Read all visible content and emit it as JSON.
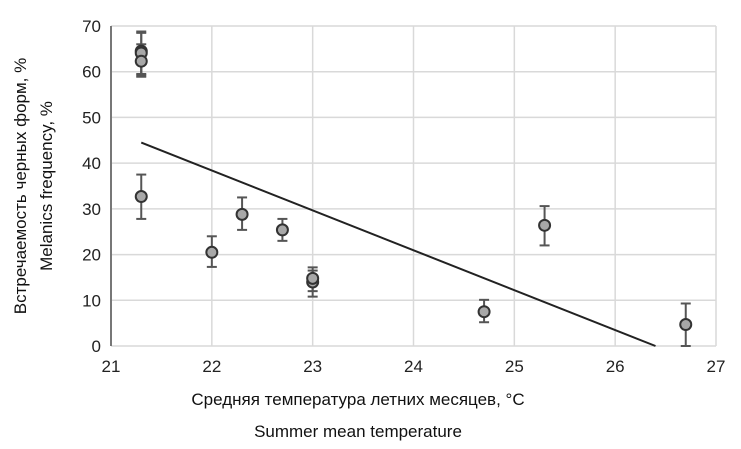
{
  "chart_data": {
    "type": "scatter",
    "title": "",
    "xlabel": [
      "Средняя температура летних месяцев, °C",
      "Summer mean temperature"
    ],
    "ylabel": [
      "Встречаемость черных форм, %",
      "Melanics frequency, %"
    ],
    "xlim": [
      21,
      27
    ],
    "ylim": [
      0,
      70
    ],
    "xticks": [
      "21",
      "22",
      "23",
      "24",
      "25",
      "26",
      "27"
    ],
    "yticks": [
      "0",
      "10",
      "20",
      "30",
      "40",
      "50",
      "60",
      "70"
    ],
    "grid": true,
    "points": [
      {
        "x": 21.3,
        "y": 64.5,
        "err_low": 59.5,
        "err_high": 68.8
      },
      {
        "x": 21.3,
        "y": 64.1,
        "err_low": 59.2,
        "err_high": 68.5
      },
      {
        "x": 21.3,
        "y": 62.3,
        "err_low": 58.9,
        "err_high": 66
      },
      {
        "x": 21.3,
        "y": 32.7,
        "err_low": 27.8,
        "err_high": 37.5
      },
      {
        "x": 22.0,
        "y": 20.5,
        "err_low": 17.3,
        "err_high": 24
      },
      {
        "x": 22.3,
        "y": 28.8,
        "err_low": 25.4,
        "err_high": 32.5
      },
      {
        "x": 22.7,
        "y": 25.4,
        "err_low": 23,
        "err_high": 27.8
      },
      {
        "x": 23.0,
        "y": 14,
        "err_low": 10.8,
        "err_high": 16.5
      },
      {
        "x": 23.0,
        "y": 14.8,
        "err_low": 12,
        "err_high": 17.2
      },
      {
        "x": 24.7,
        "y": 7.5,
        "err_low": 5.2,
        "err_high": 10.1
      },
      {
        "x": 25.3,
        "y": 26.4,
        "err_low": 22,
        "err_high": 30.6
      },
      {
        "x": 26.7,
        "y": 4.7,
        "err_low": 0,
        "err_high": 9.3
      }
    ],
    "trendline": {
      "x": [
        21.3,
        26.4
      ],
      "y": [
        44.5,
        0
      ]
    },
    "colors": {
      "marker": "#a8a8a8",
      "marker_edge": "#333333",
      "line": "#222222",
      "grid": "#d9d9d9"
    }
  }
}
